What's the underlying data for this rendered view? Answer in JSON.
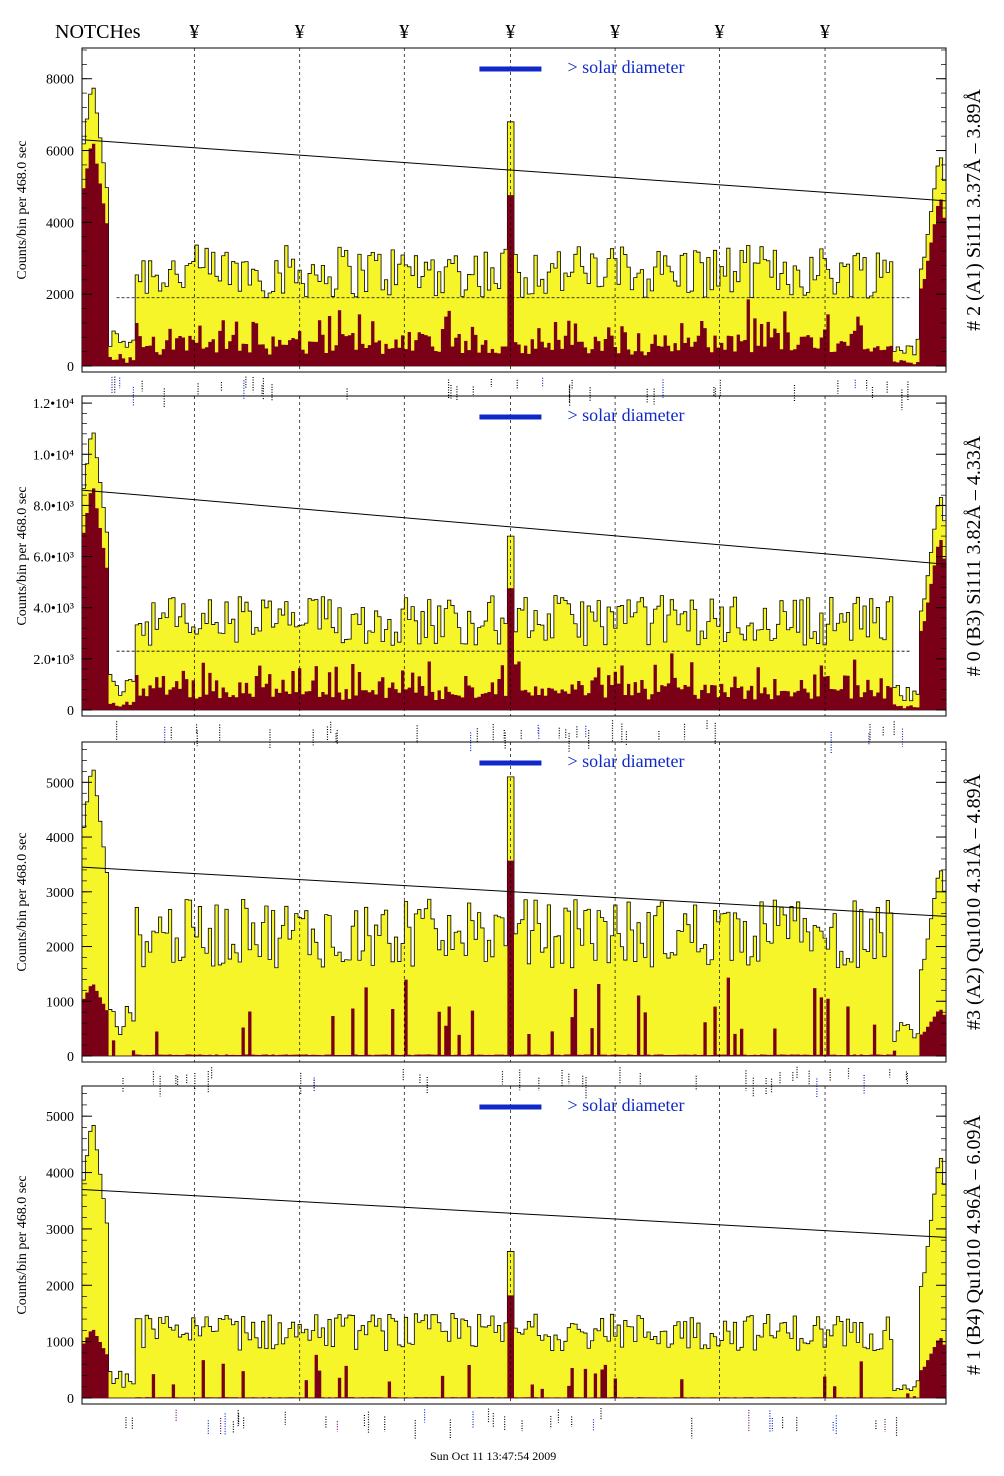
{
  "header": {
    "notches_label": "NOTCHes",
    "notch_marker": "¥",
    "timestamp": "Sun Oct 11 13:47:54 2009"
  },
  "colors": {
    "total_fill": "#f5f52a",
    "detail_fill": "#7a0018",
    "solar_bar": "#1028c8",
    "label_blue": "#1028c8",
    "label_purple": "#6a0c6a"
  },
  "chart_data": [
    {
      "type": "area",
      "panel": 1,
      "title": "# 2 (A1) Si111  3.37Å – 3.89Å",
      "ylabel": "Counts/bin per    468.0 sec",
      "ylim": [
        0,
        8800
      ],
      "yticks": [
        0,
        2000,
        4000,
        6000,
        8000
      ],
      "ytick_labels": [
        "0",
        "2000",
        "4000",
        "6000",
        "8000"
      ],
      "legend": "> solar diameter",
      "xlim": [
        0,
        1
      ],
      "notch_positions": [
        0.13,
        0.252,
        0.373,
        0.496,
        0.617,
        0.738,
        0.86
      ],
      "peak_x": [
        0.012,
        0.496,
        0.993
      ],
      "peak_heights": [
        8000,
        6800,
        6000
      ],
      "baseline_level": 2700,
      "dashed_level": 1900,
      "trend_line": {
        "x": [
          0,
          1
        ],
        "y": [
          6300,
          4600
        ]
      }
    },
    {
      "type": "area",
      "panel": 2,
      "title": "# 0 (B3) Si111  3.82Å – 4.33Å",
      "ylabel": "Counts/bin per    468.0 sec",
      "ylim": [
        0,
        12200
      ],
      "yticks": [
        0,
        2000,
        4000,
        6000,
        8000,
        10000,
        12000
      ],
      "ytick_labels": [
        "0",
        "2.0•10³",
        "4.0•10³",
        "6.0•10³",
        "8.0•10³",
        "1.0•10⁴",
        "1.2•10⁴"
      ],
      "legend": "> solar diameter",
      "xlim": [
        0,
        1
      ],
      "notch_positions": [
        0.13,
        0.252,
        0.373,
        0.496,
        0.617,
        0.738,
        0.86
      ],
      "peak_x": [
        0.012,
        0.496,
        0.993
      ],
      "peak_heights": [
        11200,
        6800,
        8600
      ],
      "baseline_level": 3600,
      "dashed_level": 2300,
      "trend_line": {
        "x": [
          0,
          1
        ],
        "y": [
          8600,
          5700
        ]
      }
    },
    {
      "type": "area",
      "panel": 3,
      "title": "#3 (A2) Qu1010  4.31Å – 4.89Å",
      "ylabel": "Counts/bin per    468.0 sec",
      "ylim": [
        0,
        5700
      ],
      "yticks": [
        0,
        1000,
        2000,
        3000,
        4000,
        5000
      ],
      "ytick_labels": [
        "0",
        "1000",
        "2000",
        "3000",
        "4000",
        "5000"
      ],
      "legend": "> solar diameter",
      "xlim": [
        0,
        1
      ],
      "notch_positions": [
        0.13,
        0.252,
        0.373,
        0.496,
        0.617,
        0.738,
        0.86
      ],
      "peak_x": [
        0.012,
        0.496,
        0.993
      ],
      "peak_heights": [
        5400,
        5100,
        3500
      ],
      "baseline_level": 2300,
      "dashed_level": 0,
      "trend_line": {
        "x": [
          0,
          1
        ],
        "y": [
          3450,
          2550
        ]
      }
    },
    {
      "type": "area",
      "panel": 4,
      "title": "# 1 (B4) Qu1010 4.96Å – 6.09Å",
      "ylabel": "Counts/bin per    468.0 sec",
      "ylim": [
        0,
        5500
      ],
      "yticks": [
        0,
        1000,
        2000,
        3000,
        4000,
        5000
      ],
      "ytick_labels": [
        "0",
        "1000",
        "2000",
        "3000",
        "4000",
        "5000"
      ],
      "legend": "> solar diameter",
      "xlim": [
        0,
        1
      ],
      "notch_positions": [
        0.13,
        0.252,
        0.373,
        0.496,
        0.617,
        0.738,
        0.86
      ],
      "peak_x": [
        0.012,
        0.496,
        0.993
      ],
      "peak_heights": [
        5000,
        2600,
        4400
      ],
      "baseline_level": 1200,
      "dashed_level": 0,
      "trend_line": {
        "x": [
          0,
          1
        ],
        "y": [
          3700,
          2850
        ]
      }
    }
  ]
}
